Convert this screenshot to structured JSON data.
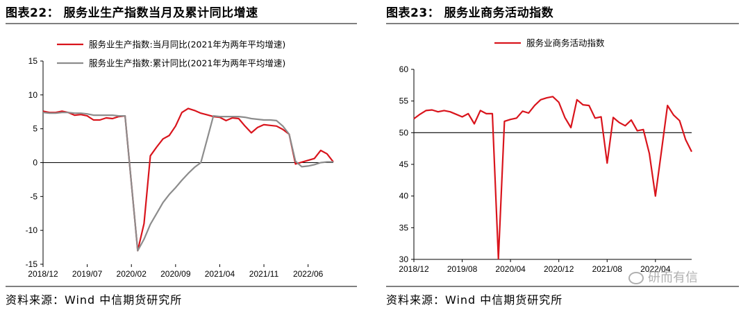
{
  "watermark": {
    "text": "研而有信"
  },
  "colors": {
    "red": "#d9141c",
    "gray": "#8c8c8c",
    "axis": "#000000",
    "rule": "#7f7f7f"
  },
  "left": {
    "title": "图表22：  服务业生产指数当月及累计同比增速",
    "source": "资料来源：Wind  中信期货研究所"
  },
  "right": {
    "title": "图表23：  服务业商务活动指数",
    "source": "资料来源：Wind  中信期货研究所"
  },
  "chart_data": [
    {
      "type": "line",
      "title": "",
      "xlabel": "",
      "ylabel": "",
      "ylim": [
        -15,
        15
      ],
      "yticks": [
        -15,
        -10,
        -5,
        0,
        5,
        10,
        15
      ],
      "xtick_labels": [
        "2018/12",
        "2019/07",
        "2020/02",
        "2020/09",
        "2021/04",
        "2021/11",
        "2022/06"
      ],
      "legend_position": "top",
      "grid": false,
      "x": [
        "2018/12",
        "2019/01",
        "2019/02",
        "2019/03",
        "2019/04",
        "2019/05",
        "2019/06",
        "2019/07",
        "2019/08",
        "2019/09",
        "2019/10",
        "2019/11",
        "2019/12",
        "2020/01",
        "2020/02",
        "2020/03",
        "2020/04",
        "2020/05",
        "2020/06",
        "2020/07",
        "2020/08",
        "2020/09",
        "2020/10",
        "2020/11",
        "2020/12",
        "2021/01",
        "2021/02",
        "2021/03",
        "2021/04",
        "2021/05",
        "2021/06",
        "2021/07",
        "2021/08",
        "2021/09",
        "2021/10",
        "2021/11",
        "2021/12",
        "2022/01",
        "2022/02",
        "2022/03",
        "2022/04",
        "2022/05",
        "2022/06",
        "2022/07",
        "2022/08",
        "2022/09",
        "2022/10"
      ],
      "series": [
        {
          "name": "服务业生产指数:当月同比(2021年为两年平均增速)",
          "color": "#d9141c",
          "values": [
            7.6,
            7.4,
            7.4,
            7.6,
            7.4,
            7.0,
            7.1,
            6.9,
            6.3,
            6.3,
            6.6,
            6.5,
            6.8,
            6.9,
            null,
            -13.0,
            -9.0,
            1.0,
            2.3,
            3.5,
            4.0,
            5.4,
            7.4,
            8.0,
            7.7,
            7.3,
            null,
            6.8,
            6.7,
            6.2,
            6.6,
            6.5,
            5.4,
            4.4,
            5.2,
            5.6,
            5.5,
            5.4,
            4.9,
            4.2,
            -0.2,
            null,
            null,
            0.6,
            1.8,
            1.3,
            0.1
          ]
        },
        {
          "name": "服务业生产指数:累计同比(2021年为两年平均增速)",
          "color": "#8c8c8c",
          "values": [
            7.4,
            7.3,
            7.3,
            7.4,
            7.4,
            7.3,
            7.3,
            7.2,
            7.0,
            7.0,
            7.0,
            7.0,
            6.9,
            6.9,
            null,
            -13.0,
            -11.3,
            -9.1,
            -7.5,
            -5.9,
            -4.7,
            -3.7,
            -2.6,
            -1.6,
            -0.7,
            0.0,
            null,
            6.9,
            6.8,
            6.8,
            6.8,
            6.8,
            6.7,
            6.5,
            6.4,
            6.3,
            6.3,
            6.2,
            5.4,
            4.2,
            0.2,
            -0.6,
            -0.5,
            -0.3,
            0.0,
            0.1,
            0.1
          ]
        }
      ]
    },
    {
      "type": "line",
      "title": "",
      "xlabel": "",
      "ylabel": "",
      "ylim": [
        30,
        60
      ],
      "yticks": [
        30,
        35,
        40,
        45,
        50,
        55,
        60
      ],
      "xtick_labels": [
        "2018/12",
        "2019/08",
        "2020/04",
        "2020/12",
        "2021/08",
        "2022/04"
      ],
      "reference_line": 50,
      "legend_position": "top",
      "grid": false,
      "x": [
        "2018/12",
        "2019/01",
        "2019/02",
        "2019/03",
        "2019/04",
        "2019/05",
        "2019/06",
        "2019/07",
        "2019/08",
        "2019/09",
        "2019/10",
        "2019/11",
        "2019/12",
        "2020/01",
        "2020/02",
        "2020/03",
        "2020/04",
        "2020/05",
        "2020/06",
        "2020/07",
        "2020/08",
        "2020/09",
        "2020/10",
        "2020/11",
        "2020/12",
        "2021/01",
        "2021/02",
        "2021/03",
        "2021/04",
        "2021/05",
        "2021/06",
        "2021/07",
        "2021/08",
        "2021/09",
        "2021/10",
        "2021/11",
        "2021/12",
        "2022/01",
        "2022/02",
        "2022/03",
        "2022/04",
        "2022/05",
        "2022/06",
        "2022/07",
        "2022/08",
        "2022/09",
        "2022/10"
      ],
      "series": [
        {
          "name": "服务业商务活动指数",
          "color": "#d9141c",
          "values": [
            52.2,
            52.9,
            53.5,
            53.6,
            53.3,
            53.5,
            53.3,
            52.9,
            52.5,
            53.0,
            51.4,
            53.5,
            53.0,
            53.0,
            30.1,
            51.8,
            52.1,
            52.3,
            53.4,
            53.1,
            54.3,
            55.2,
            55.5,
            55.7,
            54.8,
            52.4,
            50.8,
            55.2,
            54.4,
            54.3,
            52.3,
            52.5,
            45.2,
            52.4,
            51.6,
            51.1,
            52.0,
            50.3,
            50.5,
            46.7,
            40.0,
            47.1,
            54.3,
            52.8,
            51.9,
            48.9,
            47.0
          ]
        }
      ]
    }
  ]
}
